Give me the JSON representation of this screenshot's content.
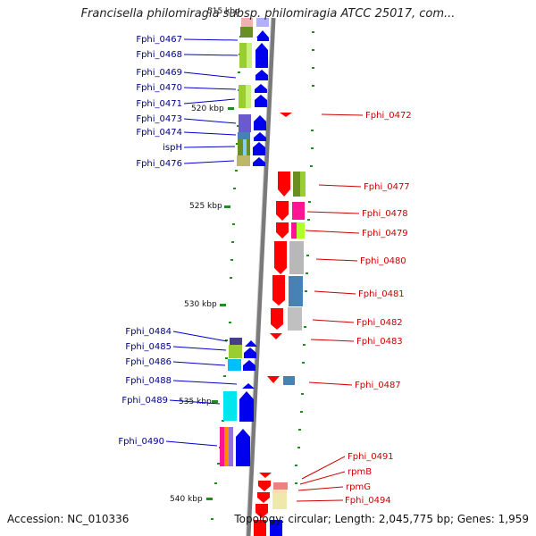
{
  "title": "Francisella philomiragia subsp. philomiragia ATCC 25017, com...",
  "footer": {
    "accession": "Accession: NC_010336",
    "topology": "Topology: circular; Length: 2,045,775 bp; Genes: 1,959"
  },
  "kbp_ticks": [
    "515 kbp",
    "520 kbp",
    "525 kbp",
    "530 kbp",
    "535 kbp",
    "540 kbp"
  ],
  "genes_forward": [
    "Fphi_0467",
    "Fphi_0468",
    "Fphi_0469",
    "Fphi_0470",
    "Fphi_0471",
    "Fphi_0473",
    "Fphi_0474",
    "ispH",
    "Fphi_0476",
    "Fphi_0484",
    "Fphi_0485",
    "Fphi_0486",
    "Fphi_0488",
    "Fphi_0489",
    "Fphi_0490"
  ],
  "genes_reverse": [
    "Fphi_0472",
    "Fphi_0477",
    "Fphi_0478",
    "Fphi_0479",
    "Fphi_0480",
    "Fphi_0481",
    "Fphi_0482",
    "Fphi_0483",
    "Fphi_0487",
    "Fphi_0491",
    "rpmB",
    "rpmG",
    "Fphi_0494"
  ],
  "colors": {
    "forward_gene": "#0000ee",
    "reverse_gene": "#ff0000",
    "backbone": "#808080",
    "tick": "#228b22",
    "left_label": "#00008b",
    "right_label": "#cc0000"
  }
}
